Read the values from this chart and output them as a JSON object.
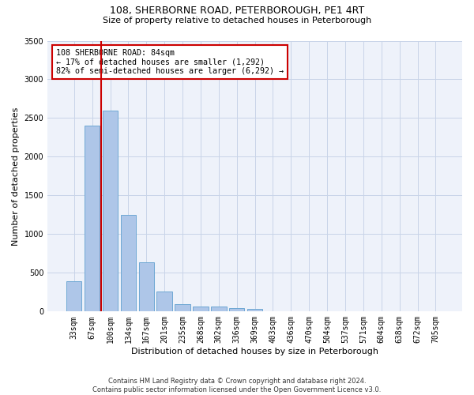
{
  "title1": "108, SHERBORNE ROAD, PETERBOROUGH, PE1 4RT",
  "title2": "Size of property relative to detached houses in Peterborough",
  "xlabel": "Distribution of detached houses by size in Peterborough",
  "ylabel": "Number of detached properties",
  "categories": [
    "33sqm",
    "67sqm",
    "100sqm",
    "134sqm",
    "167sqm",
    "201sqm",
    "235sqm",
    "268sqm",
    "302sqm",
    "336sqm",
    "369sqm",
    "403sqm",
    "436sqm",
    "470sqm",
    "504sqm",
    "537sqm",
    "571sqm",
    "604sqm",
    "638sqm",
    "672sqm",
    "705sqm"
  ],
  "values": [
    390,
    2400,
    2600,
    1250,
    640,
    260,
    100,
    60,
    60,
    40,
    30,
    0,
    0,
    0,
    0,
    0,
    0,
    0,
    0,
    0,
    0
  ],
  "bar_color": "#aec6e8",
  "bar_edge_color": "#6fa8d4",
  "bar_edge_width": 0.7,
  "grid_color": "#c8d4e8",
  "bg_color": "#eef2fa",
  "vline_color": "#cc0000",
  "annotation_text": "108 SHERBORNE ROAD: 84sqm\n← 17% of detached houses are smaller (1,292)\n82% of semi-detached houses are larger (6,292) →",
  "annotation_box_color": "#cc0000",
  "ylim": [
    0,
    3500
  ],
  "yticks": [
    0,
    500,
    1000,
    1500,
    2000,
    2500,
    3000,
    3500
  ],
  "footer": "Contains HM Land Registry data © Crown copyright and database right 2024.\nContains public sector information licensed under the Open Government Licence v3.0.",
  "title1_fontsize": 9,
  "title2_fontsize": 8,
  "xlabel_fontsize": 8,
  "ylabel_fontsize": 8,
  "tick_fontsize": 7
}
